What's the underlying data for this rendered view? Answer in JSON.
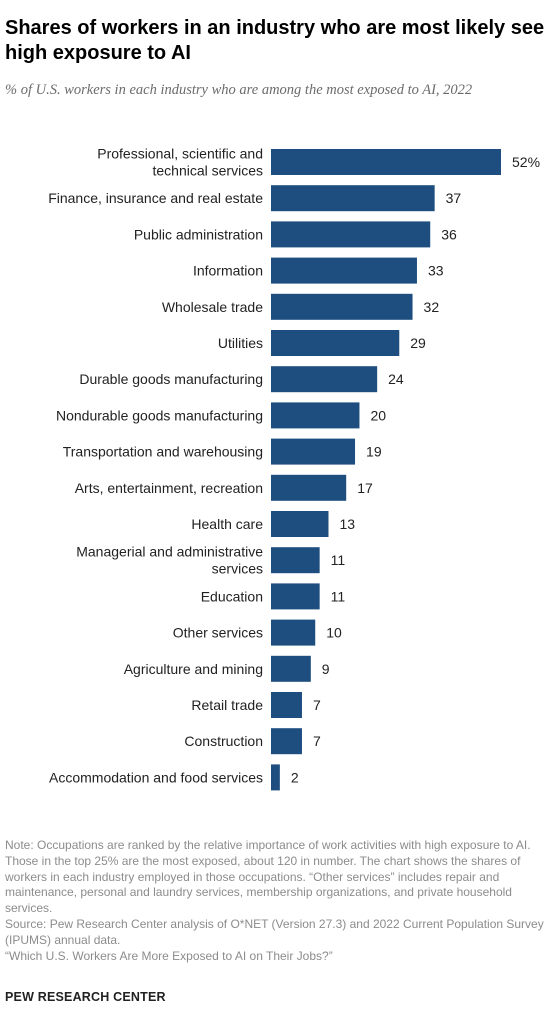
{
  "chart_data": {
    "type": "bar",
    "orientation": "horizontal",
    "title": "Shares of workers in an industry who are most likely see high exposure to AI",
    "subtitle": "% of U.S. workers in each industry who are among the most exposed to AI, 2022",
    "categories": [
      "Professional, scientific and technical services",
      "Finance, insurance and real estate",
      "Public administration",
      "Information",
      "Wholesale trade",
      "Utilities",
      "Durable goods manufacturing",
      "Nondurable goods manufacturing",
      "Transportation and warehousing",
      "Arts, entertainment, recreation",
      "Health care",
      "Managerial and administrative services",
      "Education",
      "Other services",
      "Agriculture and mining",
      "Retail trade",
      "Construction",
      "Accommodation and food services"
    ],
    "category_lines": [
      [
        "Professional, scientific and",
        "technical services"
      ],
      [
        "Finance, insurance and real estate"
      ],
      [
        "Public administration"
      ],
      [
        "Information"
      ],
      [
        "Wholesale trade"
      ],
      [
        "Utilities"
      ],
      [
        "Durable goods manufacturing"
      ],
      [
        "Nondurable goods manufacturing"
      ],
      [
        "Transportation and warehousing"
      ],
      [
        "Arts, entertainment, recreation"
      ],
      [
        "Health care"
      ],
      [
        "Managerial and administrative",
        "services"
      ],
      [
        "Education"
      ],
      [
        "Other services"
      ],
      [
        "Agriculture and mining"
      ],
      [
        "Retail trade"
      ],
      [
        "Construction"
      ],
      [
        "Accommodation and food services"
      ]
    ],
    "values": [
      52,
      37,
      36,
      33,
      32,
      29,
      24,
      20,
      19,
      17,
      13,
      11,
      11,
      10,
      9,
      7,
      7,
      2
    ],
    "value_labels": [
      "52%",
      "37",
      "36",
      "33",
      "32",
      "29",
      "24",
      "20",
      "19",
      "17",
      "13",
      "11",
      "11",
      "10",
      "9",
      "7",
      "7",
      "2"
    ],
    "bar_color": "#1d4e7f",
    "xlim": [
      0,
      52
    ],
    "grid": false,
    "legend": "none"
  },
  "notes": [
    "Note: Occupations are ranked by the relative importance of work activities with high exposure to AI. Those in the top 25% are the most exposed, about 120 in number. The chart shows the shares of workers in each industry employed in those occupations. “Other services” includes repair and maintenance, personal and laundry services, membership organizations, and private household services.",
    "Source: Pew Research Center analysis of O*NET (Version 27.3) and 2022 Current Population Survey (IPUMS) annual data.",
    "“Which U.S. Workers Are More Exposed to AI on Their Jobs?”"
  ],
  "brand": "PEW RESEARCH CENTER"
}
